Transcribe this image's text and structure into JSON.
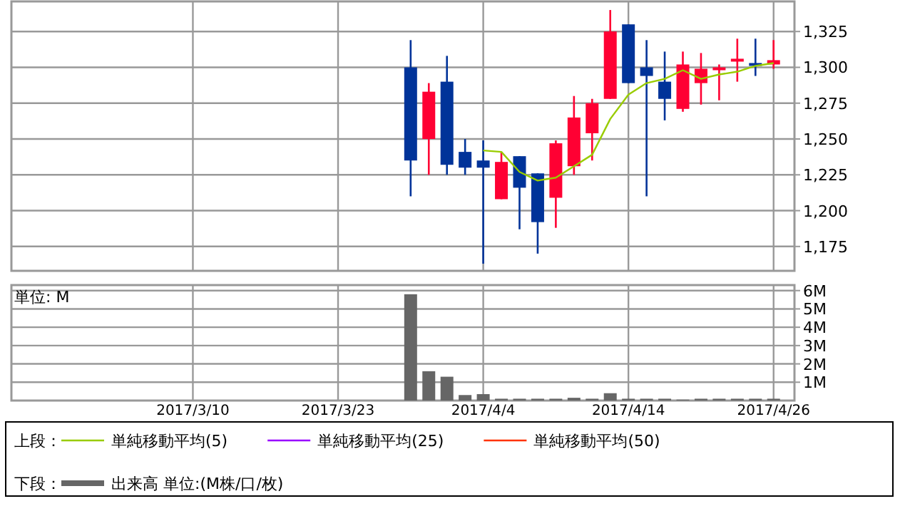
{
  "chart_data": [
    {
      "type": "candlestick",
      "categories": [
        null,
        null,
        null,
        null,
        null,
        null,
        null,
        null,
        null,
        null,
        "2017/3/10",
        null,
        null,
        null,
        null,
        null,
        null,
        null,
        "2017/3/23",
        null,
        null,
        null,
        null,
        null,
        null,
        null,
        "2017/4/4",
        null,
        null,
        null,
        null,
        null,
        null,
        null,
        "2017/4/14",
        null,
        null,
        null,
        null,
        null,
        null,
        null,
        "2017/4/26"
      ],
      "ohlc": [
        null,
        null,
        null,
        null,
        null,
        null,
        null,
        null,
        null,
        null,
        null,
        null,
        null,
        null,
        null,
        null,
        null,
        null,
        null,
        null,
        null,
        null,
        [
          1300,
          1319,
          1210,
          1235
        ],
        [
          1250,
          1289,
          1225,
          1283
        ],
        [
          1290,
          1308,
          1225,
          1232
        ],
        [
          1241,
          1250,
          1225,
          1230
        ],
        [
          1235,
          1249,
          1163,
          1230
        ],
        [
          1208,
          1241,
          1208,
          1234
        ],
        [
          1238,
          1238,
          1187,
          1216
        ],
        [
          1226,
          1226,
          1170,
          1192
        ],
        [
          1209,
          1249,
          1188,
          1247
        ],
        [
          1231,
          1280,
          1225,
          1265
        ],
        [
          1254,
          1278,
          1235,
          1275
        ],
        [
          1278,
          1340,
          1278,
          1325
        ],
        [
          1330,
          1330,
          1289,
          1289
        ],
        [
          1300,
          1319,
          1210,
          1294
        ],
        [
          1290,
          1311,
          1263,
          1278
        ],
        [
          1271,
          1311,
          1269,
          1302
        ],
        [
          1289,
          1310,
          1274,
          1299
        ],
        [
          1298,
          1302,
          1277,
          1300
        ],
        [
          1304,
          1320,
          1290,
          1306
        ],
        [
          1303,
          1320,
          1294,
          1301
        ],
        [
          1302,
          1319,
          1299,
          1305
        ]
      ],
      "colors": [
        null,
        null,
        null,
        null,
        null,
        null,
        null,
        null,
        null,
        null,
        null,
        null,
        null,
        null,
        null,
        null,
        null,
        null,
        null,
        null,
        null,
        null,
        "#003399",
        "#ff0033",
        "#003399",
        "#003399",
        "#003399",
        "#ff0033",
        "#003399",
        "#003399",
        "#ff0033",
        "#ff0033",
        "#ff0033",
        "#ff0033",
        "#003399",
        "#003399",
        "#003399",
        "#ff0033",
        "#ff0033",
        "#ff0033",
        "#ff0033",
        "#003399",
        "#ff0033"
      ],
      "series": [
        {
          "type": "line",
          "name": "単純移動平均(5)",
          "color": "#99cc00",
          "values": [
            null,
            null,
            null,
            null,
            null,
            null,
            null,
            null,
            null,
            null,
            null,
            null,
            null,
            null,
            null,
            null,
            null,
            null,
            null,
            null,
            null,
            null,
            null,
            null,
            null,
            null,
            1242,
            1241,
            1227,
            1221,
            1223,
            1231,
            1239,
            1264,
            1281,
            1289,
            1292,
            1298,
            1292,
            1295,
            1297,
            1301,
            1303
          ]
        },
        {
          "type": "line",
          "name": "単純移動平均(25)",
          "color": "#9900ff",
          "values": [
            null,
            null,
            null,
            null,
            null,
            null,
            null,
            null,
            null,
            null,
            null,
            null,
            null,
            null,
            null,
            null,
            null,
            null,
            null,
            null,
            null,
            null,
            null,
            null,
            null,
            null,
            null,
            null,
            null,
            null,
            null,
            null,
            null,
            null,
            null,
            null,
            null,
            null,
            null,
            null,
            null,
            null,
            null
          ]
        },
        {
          "type": "line",
          "name": "単純移動平均(50)",
          "color": "#ff3300",
          "values": [
            null,
            null,
            null,
            null,
            null,
            null,
            null,
            null,
            null,
            null,
            null,
            null,
            null,
            null,
            null,
            null,
            null,
            null,
            null,
            null,
            null,
            null,
            null,
            null,
            null,
            null,
            null,
            null,
            null,
            null,
            null,
            null,
            null,
            null,
            null,
            null,
            null,
            null,
            null,
            null,
            null,
            null,
            null
          ]
        }
      ],
      "ylim": [
        1158,
        1346
      ],
      "yticks": [
        {
          "value": 1175,
          "label": "1,175"
        },
        {
          "value": 1200,
          "label": "1,200"
        },
        {
          "value": 1225,
          "label": "1,225"
        },
        {
          "value": 1250,
          "label": "1,250"
        },
        {
          "value": 1275,
          "label": "1,275"
        },
        {
          "value": 1300,
          "label": "1,300"
        },
        {
          "value": 1325,
          "label": "1,325"
        }
      ],
      "grid": true,
      "legend": "bottom",
      "legend_title": "上段：",
      "tick_labels": "y"
    },
    {
      "type": "bar",
      "categories": [
        null,
        null,
        null,
        null,
        null,
        null,
        null,
        null,
        null,
        null,
        "2017/3/10",
        null,
        null,
        null,
        null,
        null,
        null,
        null,
        "2017/3/23",
        null,
        null,
        null,
        null,
        null,
        null,
        null,
        "2017/4/4",
        null,
        null,
        null,
        null,
        null,
        null,
        null,
        "2017/4/14",
        null,
        null,
        null,
        null,
        null,
        null,
        null,
        "2017/4/26"
      ],
      "series": [
        {
          "name": "出来高 単位:(M株/口/枚)",
          "color": "#666666",
          "values": [
            null,
            null,
            null,
            null,
            null,
            null,
            null,
            null,
            null,
            null,
            null,
            null,
            null,
            null,
            null,
            null,
            null,
            null,
            null,
            null,
            null,
            null,
            5.8,
            1.6,
            1.3,
            0.3,
            0.35,
            0.1,
            0.1,
            0.1,
            0.1,
            0.15,
            0.1,
            0.4,
            0.1,
            0.1,
            0.1,
            0.05,
            0.1,
            0.1,
            0.1,
            0.1,
            0.1
          ]
        }
      ],
      "ylim": [
        0,
        6.3
      ],
      "yticks": [
        {
          "value": 1,
          "label": "1M"
        },
        {
          "value": 2,
          "label": "2M"
        },
        {
          "value": 3,
          "label": "3M"
        },
        {
          "value": 4,
          "label": "4M"
        },
        {
          "value": 5,
          "label": "5M"
        },
        {
          "value": 6,
          "label": "6M"
        }
      ],
      "grid": true,
      "legend": "bottom",
      "legend_title": "下段：",
      "annotations": [
        "単位: M"
      ]
    }
  ]
}
